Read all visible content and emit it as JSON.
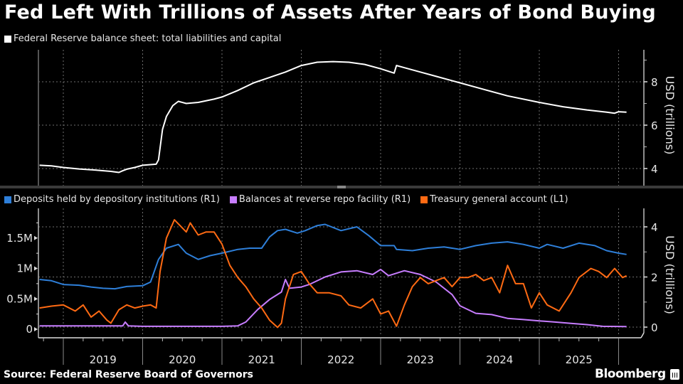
{
  "title": "Fed Left With Trillions of Assets After Years of Bond Buying",
  "source": "Source: Federal Reserve Board of Governors",
  "brand": "Bloomberg",
  "colors": {
    "background": "#000000",
    "balance_sheet": "#ffffff",
    "deposits": "#2e7fd9",
    "reverse_repo": "#c77dff",
    "tga": "#ff6a13",
    "grid": "#6e6e6e",
    "axis": "#9a9a9a"
  },
  "chart_data": [
    {
      "type": "line",
      "title": "",
      "legend": [
        {
          "name": "Federal Reserve balance sheet: total liabilities and capital",
          "color": "#ffffff"
        }
      ],
      "legend_placement": "top-left",
      "ylabel": "USD (trillions)",
      "y_axis_side": "right",
      "ylim": [
        3.2,
        9.5
      ],
      "yticks": [
        4,
        6,
        8
      ],
      "xlim": [
        2018.7,
        2026.15
      ],
      "x_categories": [
        "2019",
        "2020",
        "2021",
        "2022",
        "2023",
        "2024",
        "2025"
      ],
      "grid": true,
      "series": [
        {
          "name": "Federal Reserve balance sheet: total liabilities and capital",
          "x": [
            2018.7,
            2018.85,
            2019.0,
            2019.2,
            2019.4,
            2019.6,
            2019.7,
            2019.75,
            2019.8,
            2019.9,
            2020.0,
            2020.1,
            2020.17,
            2020.2,
            2020.25,
            2020.3,
            2020.38,
            2020.45,
            2020.55,
            2020.7,
            2020.9,
            2021.0,
            2021.2,
            2021.4,
            2021.6,
            2021.8,
            2022.0,
            2022.2,
            2022.4,
            2022.6,
            2022.8,
            2023.0,
            2023.17,
            2023.2,
            2023.3,
            2023.5,
            2023.7,
            2024.0,
            2024.3,
            2024.6,
            2025.0,
            2025.3,
            2025.6,
            2025.85,
            2025.95,
            2026.0,
            2026.1
          ],
          "y": [
            4.15,
            4.12,
            4.05,
            3.98,
            3.93,
            3.87,
            3.82,
            3.9,
            3.97,
            4.05,
            4.15,
            4.18,
            4.2,
            4.4,
            5.8,
            6.4,
            6.9,
            7.1,
            7.0,
            7.05,
            7.2,
            7.3,
            7.6,
            7.95,
            8.2,
            8.45,
            8.75,
            8.9,
            8.93,
            8.9,
            8.8,
            8.6,
            8.4,
            8.75,
            8.65,
            8.45,
            8.25,
            7.95,
            7.65,
            7.35,
            7.05,
            6.85,
            6.7,
            6.6,
            6.55,
            6.62,
            6.6
          ]
        }
      ]
    },
    {
      "type": "line",
      "title": "",
      "legend": [
        {
          "name": "Deposits held by depository institutions (R1)",
          "color": "#2e7fd9"
        },
        {
          "name": "Balances at reverse repo facility (R1)",
          "color": "#c77dff"
        },
        {
          "name": "Treasury general account  (L1)",
          "color": "#ff6a13"
        }
      ],
      "legend_placement": "top-left",
      "left_axis": {
        "ylim": [
          -0.1,
          1.85
        ],
        "yticks": [
          0,
          0.5,
          1,
          1.5
        ],
        "tick_labels": [
          "0",
          "0.5M",
          "1M",
          "1.5M"
        ]
      },
      "right_axis": {
        "label": "USD (trillions)",
        "ylim": [
          -0.02,
          4.6
        ],
        "yticks": [
          0,
          2,
          4
        ],
        "tick_labels": [
          "0",
          "2",
          "4"
        ]
      },
      "xlim": [
        2018.7,
        2026.15
      ],
      "x_categories": [
        "2019",
        "2020",
        "2021",
        "2022",
        "2023",
        "2024",
        "2025"
      ],
      "grid": true,
      "series": [
        {
          "name": "Deposits held by depository institutions (R1)",
          "axis": "right",
          "x": [
            2018.7,
            2018.85,
            2019.0,
            2019.2,
            2019.35,
            2019.5,
            2019.65,
            2019.8,
            2020.0,
            2020.1,
            2020.2,
            2020.3,
            2020.45,
            2020.55,
            2020.7,
            2020.85,
            2021.0,
            2021.2,
            2021.35,
            2021.5,
            2021.6,
            2021.7,
            2021.8,
            2021.95,
            2022.05,
            2022.2,
            2022.3,
            2022.5,
            2022.7,
            2022.85,
            2023.0,
            2023.17,
            2023.2,
            2023.4,
            2023.6,
            2023.8,
            2024.0,
            2024.2,
            2024.4,
            2024.6,
            2024.8,
            2025.0,
            2025.1,
            2025.3,
            2025.5,
            2025.7,
            2025.85,
            2026.0,
            2026.1
          ],
          "y": [
            1.9,
            1.85,
            1.7,
            1.67,
            1.6,
            1.55,
            1.53,
            1.62,
            1.65,
            1.8,
            2.7,
            3.15,
            3.3,
            2.95,
            2.7,
            2.85,
            2.95,
            3.1,
            3.15,
            3.15,
            3.6,
            3.85,
            3.9,
            3.75,
            3.85,
            4.05,
            4.1,
            3.85,
            4.0,
            3.65,
            3.25,
            3.25,
            3.1,
            3.05,
            3.15,
            3.2,
            3.1,
            3.25,
            3.35,
            3.4,
            3.3,
            3.15,
            3.3,
            3.15,
            3.35,
            3.25,
            3.05,
            2.95,
            2.9
          ]
        },
        {
          "name": "Balances at reverse repo facility (R1)",
          "axis": "right",
          "x": [
            2018.7,
            2019.0,
            2019.5,
            2019.75,
            2019.78,
            2019.82,
            2020.0,
            2020.5,
            2021.0,
            2021.2,
            2021.3,
            2021.45,
            2021.6,
            2021.75,
            2021.8,
            2021.85,
            2022.0,
            2022.1,
            2022.3,
            2022.5,
            2022.7,
            2022.9,
            2023.0,
            2023.1,
            2023.3,
            2023.5,
            2023.7,
            2023.9,
            2024.0,
            2024.2,
            2024.4,
            2024.6,
            2024.8,
            2025.0,
            2025.2,
            2025.4,
            2025.6,
            2025.8,
            2026.1
          ],
          "y": [
            0.05,
            0.05,
            0.05,
            0.05,
            0.2,
            0.05,
            0.03,
            0.03,
            0.03,
            0.05,
            0.2,
            0.7,
            1.1,
            1.4,
            1.9,
            1.55,
            1.6,
            1.7,
            2.0,
            2.2,
            2.25,
            2.1,
            2.3,
            2.05,
            2.25,
            2.1,
            1.8,
            1.3,
            0.85,
            0.55,
            0.5,
            0.35,
            0.3,
            0.25,
            0.2,
            0.15,
            0.1,
            0.03,
            0.02
          ]
        },
        {
          "name": "Treasury general account  (L1)",
          "axis": "left",
          "x": [
            2018.7,
            2018.85,
            2019.0,
            2019.15,
            2019.25,
            2019.35,
            2019.45,
            2019.55,
            2019.6,
            2019.7,
            2019.8,
            2019.9,
            2020.0,
            2020.1,
            2020.17,
            2020.22,
            2020.3,
            2020.4,
            2020.55,
            2020.6,
            2020.7,
            2020.8,
            2020.9,
            2021.0,
            2021.1,
            2021.2,
            2021.3,
            2021.4,
            2021.5,
            2021.6,
            2021.7,
            2021.75,
            2021.8,
            2021.9,
            2022.0,
            2022.1,
            2022.2,
            2022.35,
            2022.5,
            2022.6,
            2022.75,
            2022.9,
            2023.0,
            2023.1,
            2023.2,
            2023.3,
            2023.4,
            2023.5,
            2023.6,
            2023.7,
            2023.8,
            2023.9,
            2024.0,
            2024.1,
            2024.2,
            2024.3,
            2024.4,
            2024.5,
            2024.6,
            2024.7,
            2024.8,
            2024.9,
            2025.0,
            2025.1,
            2025.25,
            2025.4,
            2025.5,
            2025.65,
            2025.75,
            2025.85,
            2025.95,
            2026.05,
            2026.1
          ],
          "y": [
            0.35,
            0.38,
            0.4,
            0.3,
            0.4,
            0.2,
            0.3,
            0.15,
            0.1,
            0.32,
            0.4,
            0.35,
            0.38,
            0.4,
            0.35,
            0.95,
            1.5,
            1.8,
            1.6,
            1.75,
            1.55,
            1.6,
            1.6,
            1.4,
            1.05,
            0.85,
            0.7,
            0.5,
            0.35,
            0.15,
            0.03,
            0.1,
            0.5,
            0.9,
            0.95,
            0.75,
            0.6,
            0.6,
            0.55,
            0.4,
            0.35,
            0.5,
            0.25,
            0.3,
            0.05,
            0.4,
            0.7,
            0.85,
            0.75,
            0.8,
            0.85,
            0.7,
            0.85,
            0.85,
            0.9,
            0.8,
            0.85,
            0.6,
            1.05,
            0.75,
            0.75,
            0.35,
            0.6,
            0.4,
            0.3,
            0.6,
            0.85,
            1.0,
            0.95,
            0.85,
            1.0,
            0.85,
            0.88
          ]
        }
      ]
    }
  ]
}
